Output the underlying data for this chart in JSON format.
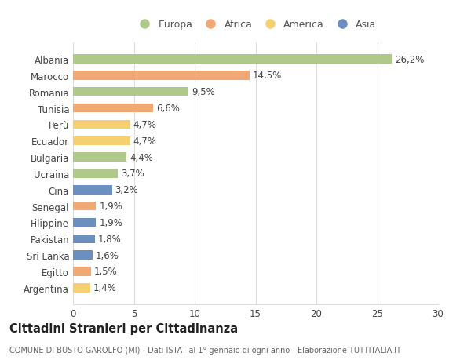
{
  "categories": [
    "Albania",
    "Marocco",
    "Romania",
    "Tunisia",
    "Perù",
    "Ecuador",
    "Bulgaria",
    "Ucraina",
    "Cina",
    "Senegal",
    "Filippine",
    "Pakistan",
    "Sri Lanka",
    "Egitto",
    "Argentina"
  ],
  "values": [
    26.2,
    14.5,
    9.5,
    6.6,
    4.7,
    4.7,
    4.4,
    3.7,
    3.2,
    1.9,
    1.9,
    1.8,
    1.6,
    1.5,
    1.4
  ],
  "labels": [
    "26,2%",
    "14,5%",
    "9,5%",
    "6,6%",
    "4,7%",
    "4,7%",
    "4,4%",
    "3,7%",
    "3,2%",
    "1,9%",
    "1,9%",
    "1,8%",
    "1,6%",
    "1,5%",
    "1,4%"
  ],
  "colors": [
    "#aec98a",
    "#f0a875",
    "#aec98a",
    "#f0a875",
    "#f5d070",
    "#f5d070",
    "#aec98a",
    "#aec98a",
    "#6b8fbf",
    "#f0a875",
    "#6b8fbf",
    "#6b8fbf",
    "#6b8fbf",
    "#f0a875",
    "#f5d070"
  ],
  "legend_labels": [
    "Europa",
    "Africa",
    "America",
    "Asia"
  ],
  "legend_colors": [
    "#aec98a",
    "#f0a875",
    "#f5d070",
    "#6b8fbf"
  ],
  "title": "Cittadini Stranieri per Cittadinanza",
  "subtitle": "COMUNE DI BUSTO GAROLFO (MI) - Dati ISTAT al 1° gennaio di ogni anno - Elaborazione TUTTITALIA.IT",
  "xlim": [
    0,
    30
  ],
  "xticks": [
    0,
    5,
    10,
    15,
    20,
    25,
    30
  ],
  "background_color": "#ffffff",
  "grid_color": "#dddddd",
  "bar_height": 0.55,
  "label_fontsize": 8.5,
  "tick_fontsize": 8.5,
  "title_fontsize": 10.5,
  "subtitle_fontsize": 7.0
}
